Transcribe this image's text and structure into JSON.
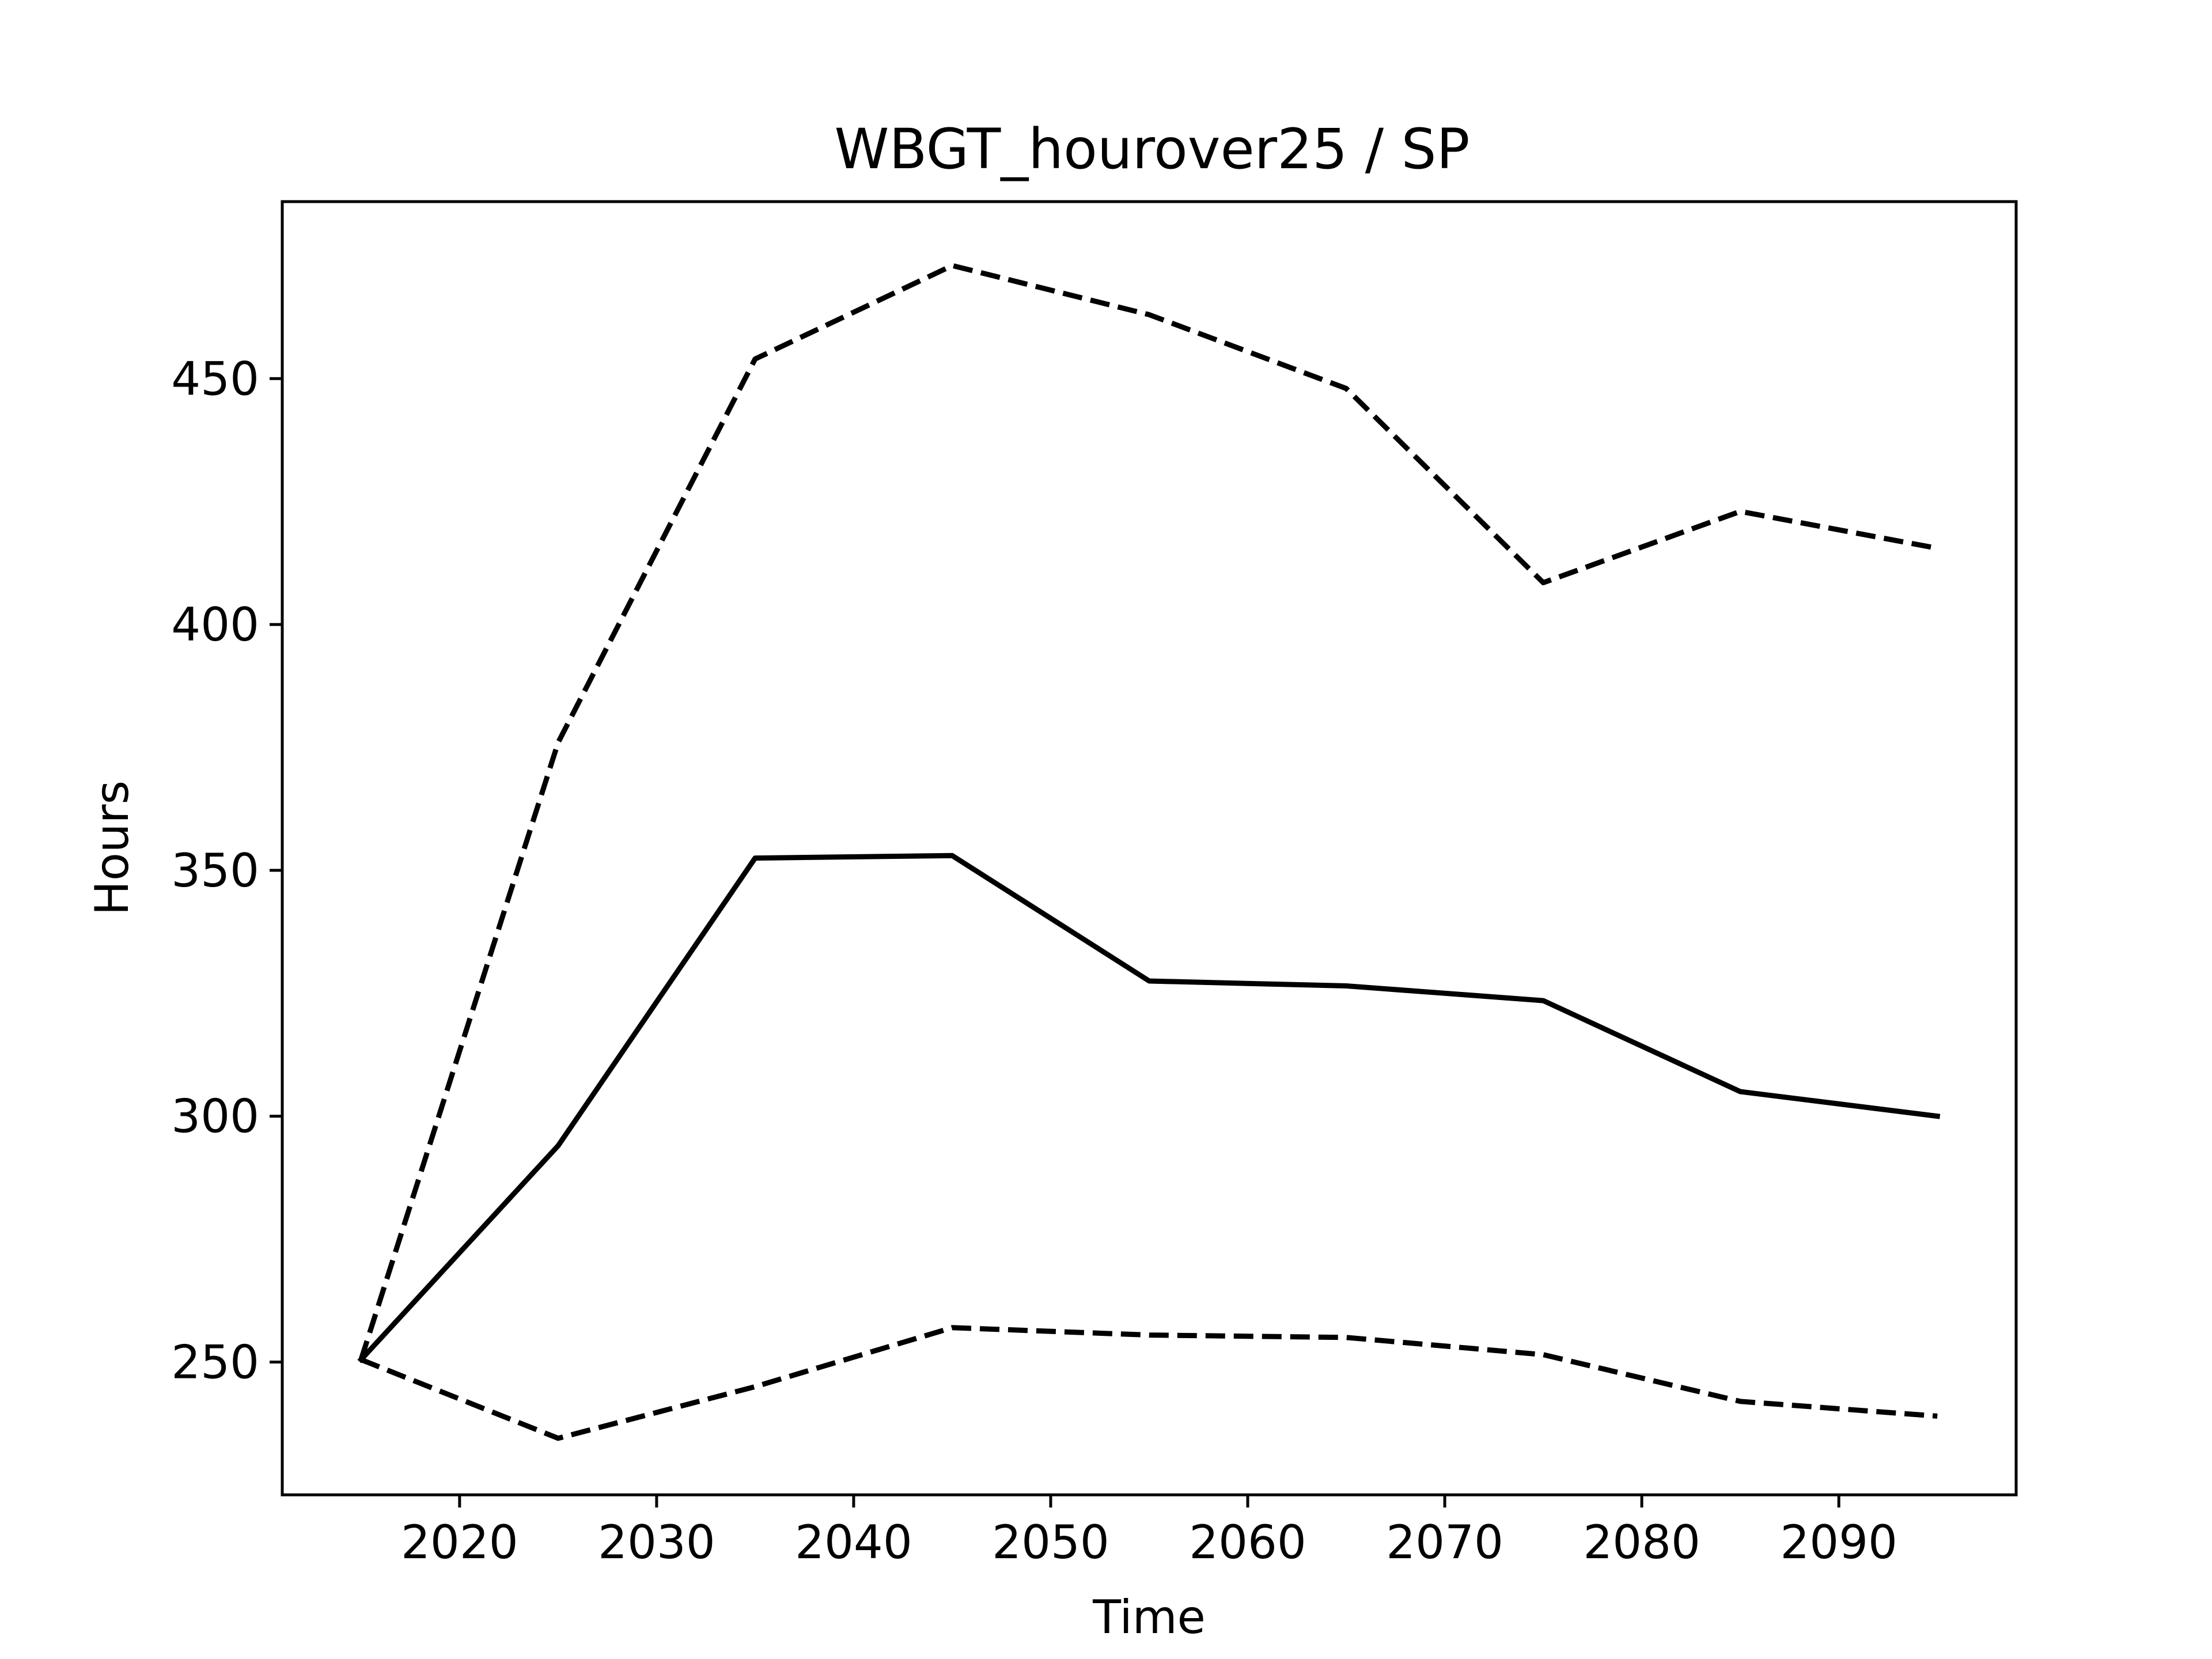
{
  "chart_data": {
    "type": "line",
    "title": "WBGT_hourover25 / SP",
    "xlabel": "Time",
    "ylabel": "Hours",
    "xlim": [
      2011,
      2099
    ],
    "ylim": [
      223,
      486
    ],
    "grid": false,
    "x": [
      2015,
      2025,
      2035,
      2045,
      2055,
      2065,
      2075,
      2085,
      2095
    ],
    "xticks": [
      2020,
      2030,
      2040,
      2050,
      2060,
      2070,
      2080,
      2090
    ],
    "yticks": [
      250,
      300,
      350,
      400,
      450
    ],
    "series": [
      {
        "style": "solid",
        "color": "#000000",
        "values": [
          250.5,
          294,
          352.5,
          353,
          327.5,
          326.5,
          323.5,
          305,
          300
        ]
      },
      {
        "style": "dashed",
        "color": "#000000",
        "values": [
          250.5,
          376,
          454,
          473,
          463,
          448,
          408.5,
          423,
          415.5
        ]
      },
      {
        "style": "dashed",
        "color": "#000000",
        "values": [
          250.5,
          234.5,
          245,
          257,
          255.5,
          255,
          251.5,
          242,
          239
        ]
      }
    ]
  }
}
